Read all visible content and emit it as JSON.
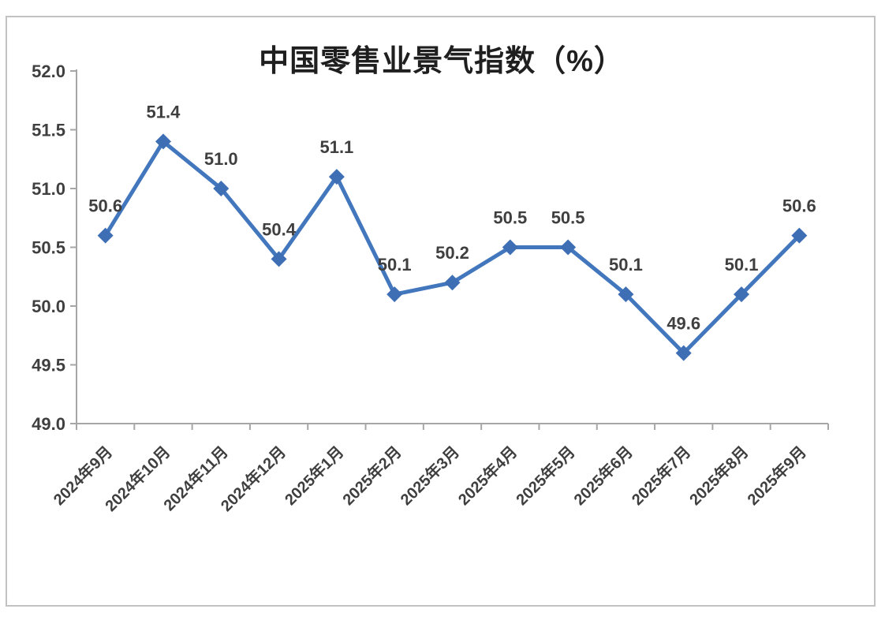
{
  "page": {
    "background": "#ffffff",
    "frame_border_color": "#c2c2c2"
  },
  "chart_data": {
    "type": "line",
    "title": "中国零售业景气指数（%）",
    "categories": [
      "2024年9月",
      "2024年10月",
      "2024年11月",
      "2024年12月",
      "2025年1月",
      "2025年2月",
      "2025年3月",
      "2025年4月",
      "2025年5月",
      "2025年6月",
      "2025年7月",
      "2025年8月",
      "2025年9月"
    ],
    "values": [
      50.6,
      51.4,
      51.0,
      50.4,
      51.1,
      50.1,
      50.2,
      50.5,
      50.5,
      50.1,
      49.6,
      50.1,
      50.6
    ],
    "data_labels": [
      "50.6",
      "51.4",
      "51.0",
      "50.4",
      "51.1",
      "50.1",
      "50.2",
      "50.5",
      "50.5",
      "50.1",
      "49.6",
      "50.1",
      "50.6"
    ],
    "xlabel": "",
    "ylabel": "",
    "ylim": [
      49.0,
      52.0
    ],
    "y_ticks": [
      52.0,
      51.5,
      51.0,
      50.5,
      50.0,
      49.5,
      49.0
    ],
    "y_tick_labels": [
      "52.0",
      "51.5",
      "51.0",
      "50.5",
      "50.0",
      "49.5",
      "49.0"
    ],
    "grid": false,
    "legend": "none",
    "marker": "diamond",
    "colors": {
      "line": "#4377BD",
      "marker": "#3E6FB5",
      "axis": "#A6A6A6",
      "tick_label": "#3F3F3F",
      "data_label": "#3F3F3F",
      "title": "#1F1F1F"
    }
  }
}
